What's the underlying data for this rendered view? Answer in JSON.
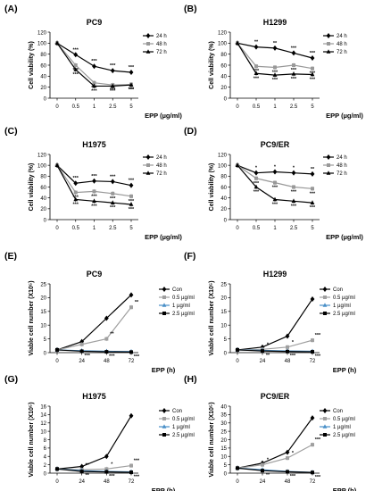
{
  "chart_data": [
    {
      "id": "A",
      "panel_label": "(A)",
      "type": "line",
      "title": "PC9",
      "ylabel": "Cell viability (%)",
      "xlabel": "EPP (µg/ml)",
      "categories": [
        "0",
        "0.5",
        "1",
        "2.5",
        "5"
      ],
      "ylim": [
        0,
        120
      ],
      "yticks": [
        0,
        20,
        40,
        60,
        80,
        100,
        120
      ],
      "grid": false,
      "legend": "right",
      "series": [
        {
          "name": "24 h",
          "style": "s24",
          "values": [
            100,
            79,
            58,
            50,
            47
          ],
          "sig": [
            "",
            "***",
            "***",
            "***",
            "***"
          ]
        },
        {
          "name": "48 h",
          "style": "s48",
          "values": [
            100,
            60,
            28,
            24,
            25
          ],
          "sig": [
            "",
            "***",
            "***",
            "***",
            "***"
          ]
        },
        {
          "name": "72 h",
          "style": "s72",
          "values": [
            100,
            52,
            22,
            22,
            24
          ],
          "sig": [
            "",
            "***",
            "***",
            "***",
            "***"
          ]
        }
      ]
    },
    {
      "id": "B",
      "panel_label": "(B)",
      "type": "line",
      "title": "H1299",
      "ylabel": "Cell viability (%)",
      "xlabel": "EPP (µg/ml)",
      "categories": [
        "0",
        "0.5",
        "1",
        "2.5",
        "5"
      ],
      "ylim": [
        0,
        120
      ],
      "yticks": [
        0,
        20,
        40,
        60,
        80,
        100,
        120
      ],
      "grid": false,
      "legend": "right",
      "series": [
        {
          "name": "24 h",
          "style": "s24",
          "values": [
            100,
            93,
            91,
            82,
            73
          ],
          "sig": [
            "",
            "**",
            "**",
            "***",
            "***"
          ]
        },
        {
          "name": "48 h",
          "style": "s48",
          "values": [
            100,
            58,
            56,
            60,
            54
          ],
          "sig": [
            "",
            "***",
            "***",
            "***",
            "***"
          ]
        },
        {
          "name": "72 h",
          "style": "s72",
          "values": [
            100,
            45,
            42,
            44,
            43
          ],
          "sig": [
            "",
            "***",
            "***",
            "***",
            "***"
          ]
        }
      ]
    },
    {
      "id": "C",
      "panel_label": "(C)",
      "type": "line",
      "title": "H1975",
      "ylabel": "Cell viability (%)",
      "xlabel": "EPP (µg/ml)",
      "categories": [
        "0",
        "0.5",
        "1",
        "2.5",
        "5"
      ],
      "ylim": [
        0,
        120
      ],
      "yticks": [
        0,
        20,
        40,
        60,
        80,
        100,
        120
      ],
      "grid": false,
      "legend": "right",
      "series": [
        {
          "name": "24 h",
          "style": "s24",
          "values": [
            100,
            67,
            71,
            70,
            63
          ],
          "sig": [
            "",
            "***",
            "***",
            "***",
            "***"
          ]
        },
        {
          "name": "48 h",
          "style": "s48",
          "values": [
            100,
            50,
            52,
            48,
            43
          ],
          "sig": [
            "",
            "***",
            "***",
            "***",
            "***"
          ]
        },
        {
          "name": "72 h",
          "style": "s72",
          "values": [
            100,
            37,
            34,
            31,
            28
          ],
          "sig": [
            "",
            "***",
            "***",
            "***",
            "***"
          ]
        }
      ]
    },
    {
      "id": "D",
      "panel_label": "(D)",
      "type": "line",
      "title": "PC9/ER",
      "ylabel": "Cell viability (%)",
      "xlabel": "EPP (µg/ml)",
      "categories": [
        "0",
        "0.5",
        "1",
        "2.5",
        "5"
      ],
      "ylim": [
        0,
        120
      ],
      "yticks": [
        0,
        20,
        40,
        60,
        80,
        100,
        120
      ],
      "grid": false,
      "legend": "right",
      "series": [
        {
          "name": "24 h",
          "style": "s24",
          "values": [
            100,
            86,
            88,
            86,
            84
          ],
          "sig": [
            "",
            "*",
            "*",
            "*",
            "**"
          ]
        },
        {
          "name": "48 h",
          "style": "s48",
          "values": [
            100,
            76,
            68,
            60,
            57
          ],
          "sig": [
            "",
            "***",
            "***",
            "***",
            "***"
          ]
        },
        {
          "name": "72 h",
          "style": "s72",
          "values": [
            100,
            60,
            37,
            34,
            31
          ],
          "sig": [
            "",
            "***",
            "***",
            "***",
            "***"
          ]
        }
      ]
    },
    {
      "id": "E",
      "panel_label": "(E)",
      "type": "line",
      "title": "PC9",
      "ylabel": "Viable cell number (X10⁵)",
      "xlabel": "EPP (h)",
      "categories": [
        "0",
        "24",
        "48",
        "72"
      ],
      "ylim": [
        0,
        25
      ],
      "yticks": [
        0,
        5,
        10,
        15,
        20,
        25
      ],
      "grid": false,
      "legend": "right",
      "series": [
        {
          "name": "Con",
          "style": "con",
          "values": [
            1,
            4,
            12.5,
            21
          ],
          "sig": [
            "",
            "",
            "",
            ""
          ]
        },
        {
          "name": "0.5 µg/ml",
          "style": "c05",
          "values": [
            1,
            3,
            5,
            16.5
          ],
          "sig": [
            "",
            "",
            "**",
            "**"
          ]
        },
        {
          "name": "1 µg/ml",
          "style": "c1",
          "values": [
            1,
            0.7,
            0.5,
            0.4
          ],
          "sig": [
            "",
            "***",
            "***",
            "***"
          ]
        },
        {
          "name": "2.5 µg/ml",
          "style": "c25",
          "values": [
            1,
            0.5,
            0.3,
            0.2
          ],
          "sig": [
            "",
            "",
            "",
            ""
          ]
        }
      ]
    },
    {
      "id": "F",
      "panel_label": "(F)",
      "type": "line",
      "title": "H1299",
      "ylabel": "Viable cell number (X10⁵)",
      "xlabel": "EPP (h)",
      "categories": [
        "0",
        "24",
        "48",
        "72"
      ],
      "ylim": [
        0,
        25
      ],
      "yticks": [
        0,
        5,
        10,
        15,
        20,
        25
      ],
      "grid": false,
      "legend": "right",
      "series": [
        {
          "name": "Con",
          "style": "con",
          "values": [
            1,
            2,
            6,
            19.5
          ],
          "sig": [
            "",
            "",
            "",
            ""
          ]
        },
        {
          "name": "0.5 µg/ml",
          "style": "c05",
          "values": [
            1,
            1.2,
            2,
            4.5
          ],
          "sig": [
            "",
            "*",
            "*",
            "***"
          ]
        },
        {
          "name": "1 µg/ml",
          "style": "c1",
          "values": [
            1,
            0.8,
            0.6,
            0.5
          ],
          "sig": [
            "",
            "**",
            "***",
            "***"
          ]
        },
        {
          "name": "2.5 µg/ml",
          "style": "c25",
          "values": [
            1,
            0.6,
            0.4,
            0.3
          ],
          "sig": [
            "",
            "",
            "",
            ""
          ]
        }
      ]
    },
    {
      "id": "G",
      "panel_label": "(G)",
      "type": "line",
      "title": "H1975",
      "ylabel": "Viable cell number (X10⁵)",
      "xlabel": "EPP (h)",
      "categories": [
        "0",
        "24",
        "48",
        "72"
      ],
      "ylim": [
        0,
        16
      ],
      "yticks": [
        0,
        2,
        4,
        6,
        8,
        10,
        12,
        14,
        16
      ],
      "grid": false,
      "legend": "right",
      "series": [
        {
          "name": "Con",
          "style": "con",
          "values": [
            1,
            1.6,
            4,
            13.7
          ],
          "sig": [
            "",
            "",
            "",
            ""
          ]
        },
        {
          "name": "0.5 µg/ml",
          "style": "c05",
          "values": [
            1,
            0.8,
            1,
            1.8
          ],
          "sig": [
            "",
            "**",
            "*",
            "***"
          ]
        },
        {
          "name": "1 µg/ml",
          "style": "c1",
          "values": [
            1,
            0.6,
            0.4,
            0.3
          ],
          "sig": [
            "",
            "**",
            "***",
            "***"
          ]
        },
        {
          "name": "2.5 µg/ml",
          "style": "c25",
          "values": [
            1,
            0.4,
            0.3,
            0.2
          ],
          "sig": [
            "",
            "",
            "",
            ""
          ]
        }
      ]
    },
    {
      "id": "H",
      "panel_label": "(H)",
      "type": "line",
      "title": "PC9/ER",
      "ylabel": "Viable cell number (X10⁵)",
      "xlabel": "EPP (h)",
      "categories": [
        "0",
        "24",
        "48",
        "72"
      ],
      "ylim": [
        0,
        40
      ],
      "yticks": [
        0,
        5,
        10,
        15,
        20,
        25,
        30,
        35,
        40
      ],
      "grid": false,
      "legend": "right",
      "series": [
        {
          "name": "Con",
          "style": "con",
          "values": [
            3,
            6,
            12.5,
            33
          ],
          "sig": [
            "",
            "",
            "",
            ""
          ]
        },
        {
          "name": "0.5 µg/ml",
          "style": "c05",
          "values": [
            3,
            5,
            9,
            17
          ],
          "sig": [
            "",
            "*",
            "*",
            "***"
          ]
        },
        {
          "name": "1 µg/ml",
          "style": "c1",
          "values": [
            3,
            2,
            1,
            0.5
          ],
          "sig": [
            "",
            "**",
            "***",
            "***"
          ]
        },
        {
          "name": "2.5 µg/ml",
          "style": "c25",
          "values": [
            3,
            1.5,
            0.8,
            0.4
          ],
          "sig": [
            "",
            "",
            "",
            ""
          ]
        }
      ]
    }
  ],
  "styles": {
    "s24": {
      "color": "#000000",
      "marker": "diamond"
    },
    "s48": {
      "color": "#999999",
      "marker": "square"
    },
    "s72": {
      "color": "#000000",
      "marker": "triangle"
    },
    "con": {
      "color": "#000000",
      "marker": "diamond"
    },
    "c05": {
      "color": "#a0a0a0",
      "marker": "square"
    },
    "c1": {
      "color": "#4a90c8",
      "marker": "triangle"
    },
    "c25": {
      "color": "#000000",
      "marker": "square"
    }
  }
}
